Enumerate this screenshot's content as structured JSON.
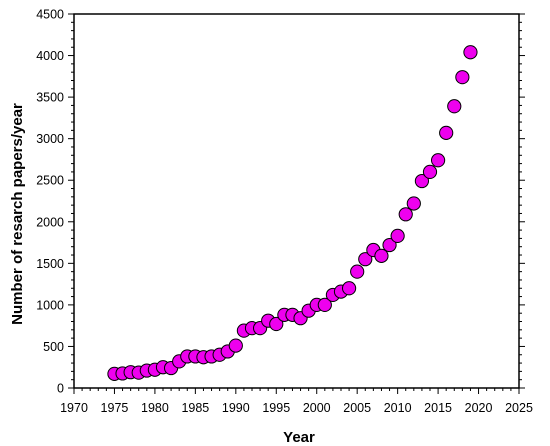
{
  "chart_data": {
    "type": "scatter",
    "title": "",
    "xlabel": "Year",
    "ylabel": "Number of resarch papers/year",
    "xlim": [
      1970,
      2025
    ],
    "ylim": [
      0,
      4500
    ],
    "xticks": [
      "1970",
      "1975",
      "1980",
      "1985",
      "1990",
      "1995",
      "2000",
      "2005",
      "2010",
      "2015",
      "2020",
      "2025"
    ],
    "yticks": [
      "0",
      "500",
      "1000",
      "1500",
      "2000",
      "2500",
      "3000",
      "3500",
      "4000",
      "4500"
    ],
    "grid": false,
    "legend": "none",
    "marker_color": "#ee00ee",
    "marker_edge_color": "#000000",
    "series": [
      {
        "x": [
          1975,
          1976,
          1977,
          1978,
          1979,
          1980,
          1981,
          1982,
          1983,
          1984,
          1985,
          1986,
          1987,
          1988,
          1989,
          1990,
          1991,
          1992,
          1993,
          1994,
          1995,
          1996,
          1997,
          1998,
          1999,
          2000,
          2001,
          2002,
          2003,
          2004,
          2005,
          2006,
          2007,
          2008,
          2009,
          2010,
          2011,
          2012,
          2013,
          2014,
          2015,
          2016,
          2017,
          2018,
          2019
        ],
        "values": [
          170,
          175,
          190,
          185,
          210,
          220,
          250,
          240,
          320,
          380,
          380,
          370,
          380,
          400,
          440,
          510,
          690,
          720,
          720,
          810,
          770,
          880,
          880,
          840,
          930,
          1000,
          1000,
          1120,
          1160,
          1200,
          1400,
          1550,
          1660,
          1590,
          1720,
          1830,
          2090,
          2220,
          2490,
          2600,
          2740,
          3070,
          3390,
          3740,
          4040
        ]
      }
    ]
  }
}
